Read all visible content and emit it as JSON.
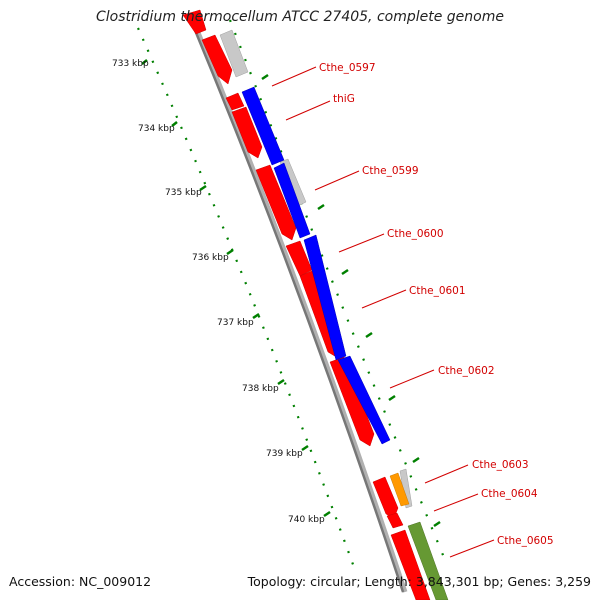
{
  "title": "Clostridium thermocellum ATCC 27405, complete genome",
  "footer": {
    "accession": "Accession: NC_009012",
    "summary": "Topology: circular; Length: 3,843,301 bp; Genes: 3,259"
  },
  "ruler": {
    "labels": [
      "733 kbp",
      "734 kbp",
      "735 kbp",
      "736 kbp",
      "737 kbp",
      "738 kbp",
      "739 kbp",
      "740 kbp"
    ]
  },
  "genes": [
    "Cthe_0597",
    "thiG",
    "Cthe_0599",
    "Cthe_0600",
    "Cthe_0601",
    "Cthe_0602",
    "Cthe_0603",
    "Cthe_0604",
    "Cthe_0605"
  ],
  "colors": {
    "cds": "#ff0000",
    "blue_track": "#0000ff",
    "grey_track": "#c0c0c0",
    "orange_track": "#ff9900",
    "olive_track": "#669933",
    "backbone": "#888888",
    "ruler_dots": "#008000",
    "label": "#d20000"
  }
}
